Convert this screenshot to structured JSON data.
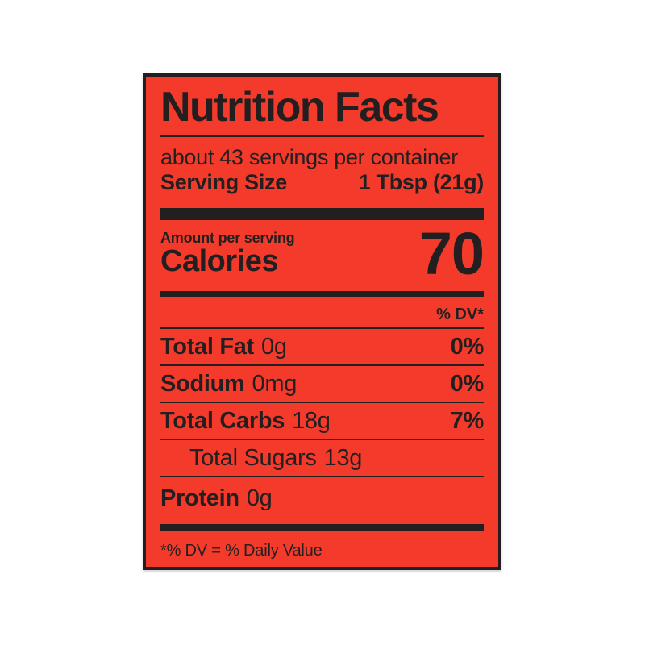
{
  "page": {
    "background": "#ffffff"
  },
  "label": {
    "colors": {
      "background": "#f43b2b",
      "ink": "#231f20"
    },
    "title": "Nutrition Facts",
    "servings_per_container": "about 43 servings per container",
    "serving_size": {
      "label": "Serving Size",
      "value": "1 Tbsp (21g)"
    },
    "calories": {
      "eyebrow": "Amount per serving",
      "label": "Calories",
      "value": "70"
    },
    "dv_header": "% DV*",
    "rows": [
      {
        "name": "Total Fat",
        "amount": "0g",
        "dv": "0%"
      },
      {
        "name": "Sodium",
        "amount": "0mg",
        "dv": "0%"
      },
      {
        "name": "Total Carbs",
        "amount": "18g",
        "dv": "7%"
      },
      {
        "name": "Total Sugars",
        "amount": "13g",
        "dv": ""
      },
      {
        "name": "Protein",
        "amount": "0g",
        "dv": ""
      }
    ],
    "footnote": "*% DV = % Daily Value"
  }
}
